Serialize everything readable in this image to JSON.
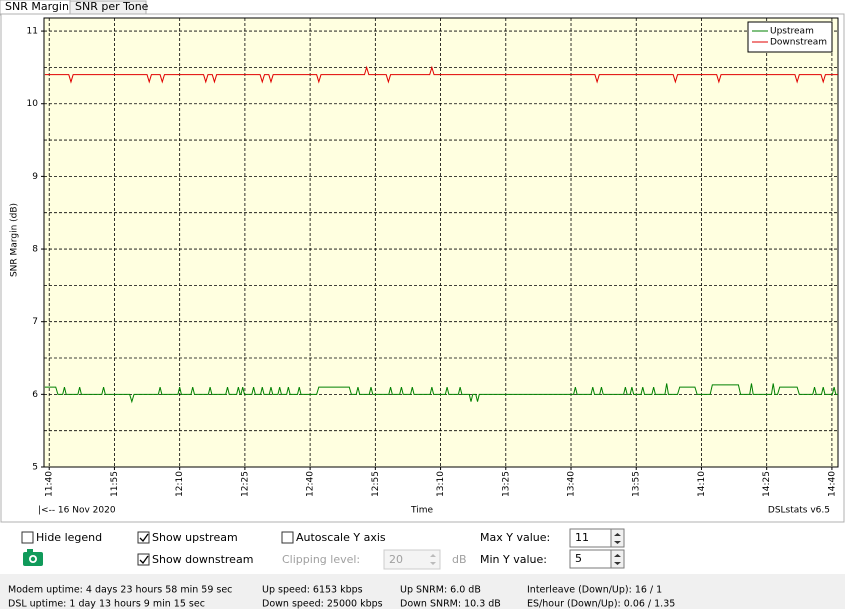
{
  "tabs": [
    "SNR Margin",
    "SNR per Tone"
  ],
  "chart_data": {
    "type": "line",
    "ylabel": "SNR Margin (dB)",
    "xlabel": "Time",
    "date_label": "|<-- 16 Nov 2020",
    "footer": "DSLstats v6.5",
    "xlim": [
      698.8,
      881.4
    ],
    "ylim": [
      5,
      11.18
    ],
    "xticks": [
      {
        "value": 700,
        "label": "11:40"
      },
      {
        "value": 715,
        "label": "11:55"
      },
      {
        "value": 730,
        "label": "12:10"
      },
      {
        "value": 745,
        "label": "12:25"
      },
      {
        "value": 760,
        "label": "12:40"
      },
      {
        "value": 775,
        "label": "12:55"
      },
      {
        "value": 790,
        "label": "13:10"
      },
      {
        "value": 805,
        "label": "13:25"
      },
      {
        "value": 820,
        "label": "13:40"
      },
      {
        "value": 835,
        "label": "13:55"
      },
      {
        "value": 850,
        "label": "14:10"
      },
      {
        "value": 865,
        "label": "14:25"
      },
      {
        "value": 880,
        "label": "14:40"
      }
    ],
    "yticks": [
      5,
      6,
      7,
      8,
      9,
      10,
      11
    ],
    "yminorticks": [
      5.5,
      6.5,
      7.5,
      8.5,
      9.5,
      10.5
    ],
    "grid": true,
    "legend": "upper right",
    "series": [
      {
        "name": "Upstream",
        "color": "#008000",
        "x": [
          699,
          701.5,
          702,
          703.1,
          703.5,
          703.9,
          706.6,
          707,
          707.4,
          712.1,
          712.5,
          712.9,
          718.5,
          719,
          719.5,
          725.1,
          725.5,
          725.9,
          729.6,
          730,
          730.4,
          732.6,
          733,
          733.4,
          736.6,
          737,
          737.4,
          740.6,
          741,
          741.4,
          743.1,
          743.5,
          743.9,
          744.1,
          744.5,
          744.9,
          746.6,
          747,
          747.4,
          748.6,
          749,
          749.4,
          750.6,
          751,
          751.4,
          752.6,
          753,
          753.4,
          754.6,
          755,
          755.4,
          757.1,
          757.5,
          757.9,
          761.5,
          762,
          769,
          769.5,
          770.6,
          771,
          771.4,
          773.6,
          774,
          774.4,
          778.1,
          778.5,
          778.9,
          780.6,
          781,
          781.4,
          783.1,
          783.5,
          783.9,
          787.6,
          788,
          788.4,
          791.1,
          791.5,
          791.9,
          794.1,
          794.5,
          794.9,
          796.6,
          797,
          797.4,
          798.1,
          798.5,
          798.9,
          820.6,
          821,
          821.4,
          824.6,
          825,
          825.4,
          826.6,
          827,
          827.4,
          832.1,
          832.5,
          832.9,
          833.6,
          834,
          834.4,
          836.1,
          836.5,
          836.9,
          838.6,
          839,
          839.4,
          841.6,
          842,
          842.4,
          844.5,
          845,
          848.5,
          849,
          852,
          852.5,
          858.5,
          859,
          861.1,
          861.5,
          861.9,
          866.1,
          866.5,
          866.9,
          867.5,
          868,
          872,
          872.5,
          875.6,
          876,
          876.4,
          877.6,
          878,
          878.4,
          880.1,
          880.5,
          880.9,
          881.4
        ],
        "values": [
          6.1,
          6.1,
          6.0,
          6.0,
          6.1,
          6.0,
          6.0,
          6.1,
          6.0,
          6.0,
          6.1,
          6.0,
          6.0,
          5.9,
          6.0,
          6.0,
          6.1,
          6.0,
          6.0,
          6.1,
          6.0,
          6.0,
          6.1,
          6.0,
          6.0,
          6.1,
          6.0,
          6.0,
          6.1,
          6.0,
          6.0,
          6.1,
          6.0,
          6.0,
          6.1,
          6.0,
          6.0,
          6.1,
          6.0,
          6.0,
          6.1,
          6.0,
          6.0,
          6.1,
          6.0,
          6.0,
          6.1,
          6.0,
          6.0,
          6.1,
          6.0,
          6.0,
          6.1,
          6.0,
          6.0,
          6.1,
          6.1,
          6.0,
          6.0,
          6.1,
          6.0,
          6.0,
          6.1,
          6.0,
          6.0,
          6.1,
          6.0,
          6.0,
          6.1,
          6.0,
          6.0,
          6.1,
          6.0,
          6.0,
          6.1,
          6.0,
          6.0,
          6.1,
          6.0,
          6.0,
          6.1,
          6.0,
          6.0,
          5.9,
          6.0,
          6.0,
          5.9,
          6.0,
          6.0,
          6.1,
          6.0,
          6.0,
          6.1,
          6.0,
          6.0,
          6.1,
          6.0,
          6.0,
          6.1,
          6.0,
          6.0,
          6.1,
          6.0,
          6.0,
          6.1,
          6.0,
          6.0,
          6.1,
          6.0,
          6.0,
          6.15,
          6.0,
          6.0,
          6.1,
          6.1,
          6.0,
          6.0,
          6.13,
          6.13,
          6.0,
          6.0,
          6.15,
          6.0,
          6.0,
          6.15,
          6.0,
          6.0,
          6.1,
          6.1,
          6.0,
          6.0,
          6.1,
          6.0,
          6.0,
          6.1,
          6.0,
          6.0,
          6.1,
          6.0,
          6.0
        ]
      },
      {
        "name": "Downstream",
        "color": "#e00000",
        "x": [
          699,
          704.5,
          705,
          705.5,
          722.5,
          723,
          723.5,
          725.5,
          726,
          726.5,
          735.5,
          736,
          736.5,
          737.5,
          738,
          738.5,
          748.5,
          749,
          749.5,
          750.5,
          751,
          751.5,
          761.5,
          762,
          762.5,
          772.5,
          773,
          773.5,
          777.5,
          778,
          778.5,
          787.5,
          788,
          788.5,
          825.5,
          826,
          826.5,
          843.5,
          844,
          844.5,
          853.5,
          854,
          854.5,
          871.5,
          872,
          872.5,
          877.5,
          878,
          878.5,
          881.4
        ],
        "values": [
          10.4,
          10.4,
          10.3,
          10.4,
          10.4,
          10.3,
          10.4,
          10.4,
          10.3,
          10.4,
          10.4,
          10.3,
          10.4,
          10.4,
          10.3,
          10.4,
          10.4,
          10.3,
          10.4,
          10.4,
          10.3,
          10.4,
          10.4,
          10.3,
          10.4,
          10.4,
          10.5,
          10.4,
          10.4,
          10.3,
          10.4,
          10.4,
          10.5,
          10.4,
          10.4,
          10.3,
          10.4,
          10.4,
          10.3,
          10.4,
          10.4,
          10.3,
          10.4,
          10.4,
          10.3,
          10.4,
          10.4,
          10.3,
          10.4,
          10.4
        ]
      }
    ]
  },
  "controls": {
    "hide_legend": "Hide legend",
    "show_upstream": "Show upstream",
    "show_downstream": "Show downstream",
    "autoscale": "Autoscale Y axis",
    "clipping_label": "Clipping level:",
    "clipping_value": "20",
    "clipping_unit": "dB",
    "max_y_label": "Max Y value:",
    "max_y_value": "11",
    "min_y_label": "Min Y value:",
    "min_y_value": "5"
  },
  "status": [
    [
      "Modem uptime: 4 days 23 hours 58 min 59 sec",
      "Up speed: 6153 kbps",
      "Up SNRM: 6.0 dB",
      "Interleave (Down/Up): 16 / 1"
    ],
    [
      "DSL uptime: 1 day 13 hours 9 min 15 sec",
      "Down speed: 25000 kbps",
      "Down SNRM: 10.3 dB",
      "ES/hour (Down/Up): 0.06 / 1.35"
    ]
  ]
}
